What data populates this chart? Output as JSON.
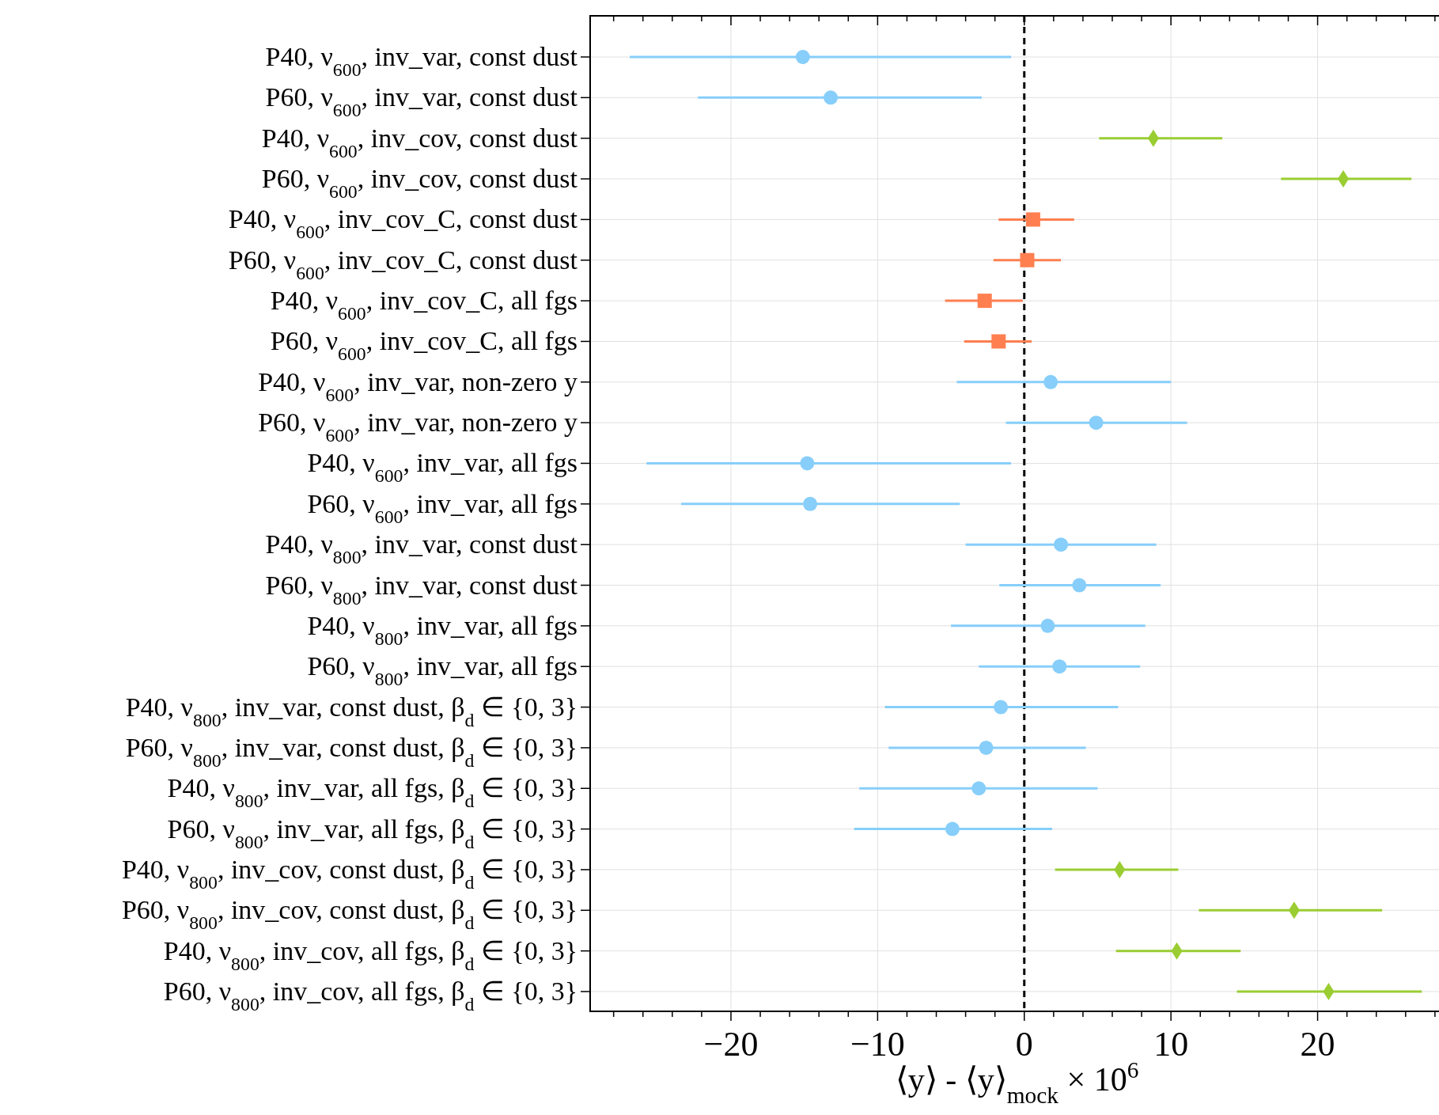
{
  "chart_data": {
    "type": "scatter",
    "orientation": "horizontal",
    "grid": true,
    "categories": [
      "P40, ν$_{600}$, inv_var, const dust",
      "P60, ν$_{600}$, inv_var, const dust",
      "P40, ν$_{600}$, inv_cov, const dust",
      "P60, ν$_{600}$, inv_cov, const dust",
      "P40, ν$_{600}$, inv_cov_C, const dust",
      "P60, ν$_{600}$, inv_cov_C, const dust",
      "P40, ν$_{600}$, inv_cov_C, all fgs",
      "P60, ν$_{600}$, inv_cov_C, all fgs",
      "P40, ν$_{600}$, inv_var, non-zero y",
      "P60, ν$_{600}$, inv_var, non-zero y",
      "P40, ν$_{600}$, inv_var, all fgs",
      "P60, ν$_{600}$, inv_var, all fgs",
      "P40, ν$_{800}$, inv_var, const dust",
      "P60, ν$_{800}$, inv_var, const dust",
      "P40, ν$_{800}$, inv_var, all fgs",
      "P60, ν$_{800}$, inv_var, all fgs",
      "P40, ν$_{800}$, inv_var, const dust, β$_{d}$ ∈ {0, 3}",
      "P60, ν$_{800}$, inv_var, const dust, β$_{d}$ ∈ {0, 3}",
      "P40, ν$_{800}$, inv_var, all fgs, β$_{d}$ ∈ {0, 3}",
      "P60, ν$_{800}$, inv_var, all fgs, β$_{d}$ ∈ {0, 3}",
      "P40, ν$_{800}$, inv_cov, const dust, β$_{d}$ ∈ {0, 3}",
      "P60, ν$_{800}$, inv_cov, const dust, β$_{d}$ ∈ {0, 3}",
      "P40, ν$_{800}$, inv_cov, all fgs, β$_{d}$ ∈ {0, 3}",
      "P60, ν$_{800}$, inv_cov, all fgs, β$_{d}$ ∈ {0, 3}"
    ],
    "series": [
      {
        "color": "#87cefa",
        "marker": "circle",
        "values": [
          -15.1,
          -13.2,
          null,
          null,
          null,
          null,
          null,
          null,
          1.8,
          4.9,
          -14.8,
          -14.6,
          2.5,
          3.75,
          1.6,
          2.4,
          -1.6,
          -2.6,
          -3.1,
          -4.9,
          null,
          null,
          null,
          null
        ],
        "errors": [
          [
            -26.9,
            -0.9
          ],
          [
            -22.25,
            -2.9
          ],
          null,
          null,
          null,
          null,
          null,
          null,
          [
            -4.6,
            10.0
          ],
          [
            -1.25,
            11.1
          ],
          [
            -25.75,
            -0.9
          ],
          [
            -23.4,
            -4.4
          ],
          [
            -4.0,
            9.0
          ],
          [
            -1.7,
            9.3
          ],
          [
            -5.0,
            8.25
          ],
          [
            -3.1,
            7.9
          ],
          [
            -9.5,
            6.4
          ],
          [
            -9.25,
            4.2
          ],
          [
            -11.25,
            5.0
          ],
          [
            -11.6,
            1.9
          ],
          null,
          null,
          null,
          null
        ]
      },
      {
        "color": "#9acd32",
        "marker": "diamond",
        "values": [
          null,
          null,
          8.8,
          21.75,
          null,
          null,
          null,
          null,
          null,
          null,
          null,
          null,
          null,
          null,
          null,
          null,
          null,
          null,
          null,
          null,
          6.5,
          18.4,
          10.4,
          20.75
        ],
        "errors": [
          null,
          null,
          [
            5.1,
            13.5
          ],
          [
            17.5,
            26.4
          ],
          null,
          null,
          null,
          null,
          null,
          null,
          null,
          null,
          null,
          null,
          null,
          null,
          null,
          null,
          null,
          null,
          [
            2.1,
            10.5
          ],
          [
            11.9,
            24.4
          ],
          [
            6.25,
            14.75
          ],
          [
            14.5,
            27.1
          ]
        ]
      },
      {
        "color": "#ff7f50",
        "marker": "square",
        "values": [
          null,
          null,
          null,
          null,
          0.6,
          0.2,
          -2.7,
          -1.75,
          null,
          null,
          null,
          null,
          null,
          null,
          null,
          null,
          null,
          null,
          null,
          null,
          null,
          null,
          null,
          null
        ],
        "errors": [
          null,
          null,
          null,
          null,
          [
            -1.75,
            3.4
          ],
          [
            -2.1,
            2.5
          ],
          [
            -5.4,
            -0.1
          ],
          [
            -4.1,
            0.5
          ],
          null,
          null,
          null,
          null,
          null,
          null,
          null,
          null,
          null,
          null,
          null,
          null,
          null,
          null,
          null,
          null
        ]
      }
    ],
    "xlim": [
      -29.6,
      28.6
    ],
    "xticks": [
      {
        "value": -28,
        "label": null
      },
      {
        "value": -26,
        "label": null
      },
      {
        "value": -24,
        "label": null
      },
      {
        "value": -22,
        "label": null
      },
      {
        "value": -20,
        "label": "−20"
      },
      {
        "value": -18,
        "label": null
      },
      {
        "value": -16,
        "label": null
      },
      {
        "value": -14,
        "label": null
      },
      {
        "value": -12,
        "label": null
      },
      {
        "value": -10,
        "label": "−10"
      },
      {
        "value": -8,
        "label": null
      },
      {
        "value": -6,
        "label": null
      },
      {
        "value": -4,
        "label": null
      },
      {
        "value": -2,
        "label": null
      },
      0,
      {
        "value": 2,
        "label": null
      },
      {
        "value": 4,
        "label": null
      },
      {
        "value": 6,
        "label": null
      },
      {
        "value": 8,
        "label": null
      },
      10,
      {
        "value": 12,
        "label": null
      },
      {
        "value": 14,
        "label": null
      },
      {
        "value": 16,
        "label": null
      },
      {
        "value": 18,
        "label": null
      },
      20,
      {
        "value": 22,
        "label": null
      },
      {
        "value": 24,
        "label": null
      },
      {
        "value": 26,
        "label": null
      },
      {
        "value": 28,
        "label": null
      }
    ],
    "xlabel": "⟨y⟩ - ⟨y⟩$_{mock}$ × 10$^{6}$",
    "ref_lines": [
      {
        "axis": "x",
        "value": 0,
        "color": "#000000",
        "line_style": "dashed"
      }
    ]
  }
}
